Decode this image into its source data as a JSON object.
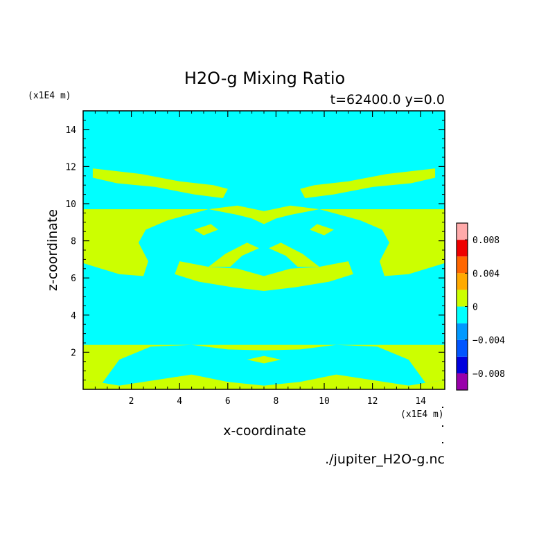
{
  "chart_data": {
    "type": "heatmap",
    "title": "H2O-g Mixing Ratio",
    "subtitle": "t=62400.0 y=0.0",
    "xlabel": "x-coordinate",
    "ylabel": "z-coordinate",
    "x_units": "(x1E4 m)",
    "y_units": "(x1E4 m)",
    "source": "./jupiter_H2O-g.nc",
    "xlim": [
      0,
      15
    ],
    "ylim": [
      0,
      15
    ],
    "x_ticks": [
      "2",
      "4",
      "6",
      "8",
      "10",
      "12",
      "14"
    ],
    "y_ticks": [
      "2",
      "4",
      "6",
      "8",
      "10",
      "12",
      "14"
    ],
    "background_level": "-0.002 to 0",
    "background_color": "#00ffff",
    "feature_level": "0 to 0.002",
    "feature_color": "#ccff00",
    "colorbar": {
      "range": [
        -0.01,
        0.01
      ],
      "levels": [
        {
          "from": -0.01,
          "to": -0.008,
          "color": "#9900aa"
        },
        {
          "from": -0.008,
          "to": -0.006,
          "color": "#0000dd"
        },
        {
          "from": -0.006,
          "to": -0.004,
          "color": "#0055ff"
        },
        {
          "from": -0.004,
          "to": -0.002,
          "color": "#0099ff"
        },
        {
          "from": -0.002,
          "to": 0,
          "color": "#00ffff"
        },
        {
          "from": 0,
          "to": 0.002,
          "color": "#ccff00"
        },
        {
          "from": 0.002,
          "to": 0.004,
          "color": "#ffaa00"
        },
        {
          "from": 0.004,
          "to": 0.006,
          "color": "#ff6600"
        },
        {
          "from": 0.006,
          "to": 0.008,
          "color": "#ee0000"
        },
        {
          "from": 0.008,
          "to": 0.01,
          "color": "#ffaaaa"
        }
      ],
      "labels": [
        {
          "value": 0.008,
          "text": "0.008"
        },
        {
          "value": 0.004,
          "text": "0.004"
        },
        {
          "value": 0,
          "text": "0"
        },
        {
          "value": -0.004,
          "text": "−0.004"
        },
        {
          "value": -0.008,
          "text": "−0.008"
        }
      ]
    },
    "regions": [
      {
        "name": "bottom-band",
        "points": [
          [
            0,
            0.5
          ],
          [
            0.8,
            0.35
          ],
          [
            1.5,
            1.6
          ],
          [
            2.8,
            2.3
          ],
          [
            4.5,
            2.4
          ],
          [
            6,
            2.15
          ],
          [
            7.5,
            2.1
          ],
          [
            9,
            2.15
          ],
          [
            10.5,
            2.4
          ],
          [
            12.2,
            2.3
          ],
          [
            13.5,
            1.6
          ],
          [
            14.2,
            0.35
          ],
          [
            15,
            0.5
          ],
          [
            15,
            2.4
          ],
          [
            7.5,
            2.4
          ],
          [
            0,
            2.4
          ]
        ]
      },
      {
        "name": "bottom-fill",
        "points": [
          [
            0,
            0
          ],
          [
            15,
            0
          ],
          [
            15,
            0.5
          ],
          [
            14.2,
            0.35
          ],
          [
            13.5,
            0.2
          ],
          [
            12,
            0.5
          ],
          [
            10.5,
            0.8
          ],
          [
            9,
            0.4
          ],
          [
            7.5,
            0.2
          ],
          [
            6,
            0.4
          ],
          [
            4.5,
            0.8
          ],
          [
            3,
            0.5
          ],
          [
            1.5,
            0.2
          ],
          [
            0.8,
            0.35
          ],
          [
            0,
            0.5
          ]
        ]
      },
      {
        "name": "left-lobe",
        "points": [
          [
            0,
            6.8
          ],
          [
            1.5,
            6.2
          ],
          [
            2.5,
            6.1
          ],
          [
            2.7,
            6.9
          ],
          [
            2.3,
            7.9
          ],
          [
            2.6,
            8.6
          ],
          [
            3.5,
            9.1
          ],
          [
            5.2,
            9.7
          ],
          [
            0,
            9.7
          ]
        ]
      },
      {
        "name": "right-lobe",
        "points": [
          [
            15,
            6.8
          ],
          [
            13.5,
            6.2
          ],
          [
            12.5,
            6.1
          ],
          [
            12.3,
            6.9
          ],
          [
            12.7,
            7.9
          ],
          [
            12.4,
            8.6
          ],
          [
            11.5,
            9.1
          ],
          [
            9.8,
            9.7
          ],
          [
            15,
            9.7
          ]
        ]
      },
      {
        "name": "upper-band-left",
        "points": [
          [
            0.4,
            11.9
          ],
          [
            2.4,
            11.6
          ],
          [
            4.0,
            11.2
          ],
          [
            5.4,
            11.0
          ],
          [
            6.0,
            10.8
          ],
          [
            5.8,
            10.3
          ],
          [
            4.6,
            10.5
          ],
          [
            3.0,
            10.9
          ],
          [
            1.4,
            11.1
          ],
          [
            0.4,
            11.4
          ]
        ]
      },
      {
        "name": "upper-band-right",
        "points": [
          [
            14.6,
            11.9
          ],
          [
            12.6,
            11.6
          ],
          [
            11.0,
            11.2
          ],
          [
            9.6,
            11.0
          ],
          [
            9.0,
            10.8
          ],
          [
            9.2,
            10.3
          ],
          [
            10.4,
            10.5
          ],
          [
            12.0,
            10.9
          ],
          [
            13.6,
            11.1
          ],
          [
            14.6,
            11.4
          ]
        ]
      },
      {
        "name": "central-cap",
        "points": [
          [
            5.2,
            9.7
          ],
          [
            6.4,
            9.4
          ],
          [
            7.0,
            9.2
          ],
          [
            7.5,
            8.9
          ],
          [
            8.0,
            9.2
          ],
          [
            8.6,
            9.4
          ],
          [
            9.8,
            9.7
          ],
          [
            8.6,
            9.9
          ],
          [
            7.5,
            9.6
          ],
          [
            6.4,
            9.9
          ]
        ]
      },
      {
        "name": "central-arch",
        "points": [
          [
            4.0,
            6.9
          ],
          [
            5.2,
            6.6
          ],
          [
            6.4,
            6.5
          ],
          [
            7.5,
            6.1
          ],
          [
            8.6,
            6.5
          ],
          [
            9.8,
            6.6
          ],
          [
            11.0,
            6.9
          ],
          [
            11.2,
            6.2
          ],
          [
            10.2,
            5.8
          ],
          [
            8.8,
            5.5
          ],
          [
            7.5,
            5.3
          ],
          [
            6.2,
            5.5
          ],
          [
            4.8,
            5.8
          ],
          [
            3.8,
            6.2
          ]
        ]
      },
      {
        "name": "inner-left-wing",
        "points": [
          [
            5.2,
            6.6
          ],
          [
            5.9,
            7.3
          ],
          [
            6.8,
            7.9
          ],
          [
            7.3,
            7.6
          ],
          [
            6.6,
            7.2
          ],
          [
            6.1,
            6.6
          ]
        ]
      },
      {
        "name": "inner-right-wing",
        "points": [
          [
            9.8,
            6.6
          ],
          [
            9.1,
            7.3
          ],
          [
            8.2,
            7.9
          ],
          [
            7.7,
            7.6
          ],
          [
            8.4,
            7.2
          ],
          [
            8.9,
            6.6
          ]
        ]
      },
      {
        "name": "small-island-left",
        "points": [
          [
            4.6,
            8.6
          ],
          [
            5.3,
            8.9
          ],
          [
            5.6,
            8.6
          ],
          [
            5.0,
            8.3
          ]
        ]
      },
      {
        "name": "small-island-right",
        "points": [
          [
            10.4,
            8.6
          ],
          [
            9.7,
            8.9
          ],
          [
            9.4,
            8.6
          ],
          [
            10.0,
            8.3
          ]
        ]
      },
      {
        "name": "bottom-island",
        "points": [
          [
            6.8,
            1.6
          ],
          [
            7.5,
            1.8
          ],
          [
            8.2,
            1.6
          ],
          [
            7.5,
            1.4
          ]
        ]
      }
    ]
  }
}
